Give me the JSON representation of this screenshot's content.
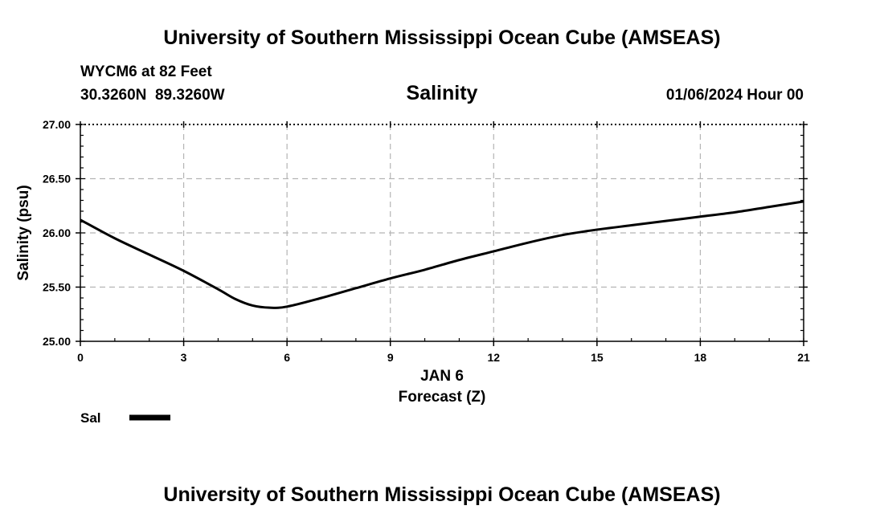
{
  "header": {
    "title": "University of Southern Mississippi Ocean Cube (AMSEAS)",
    "station": "WYCM6 at 82 Feet",
    "coordinates": "30.3260N  89.3260W",
    "datetime": "01/06/2024 Hour 00"
  },
  "footer": {
    "title": "University of Southern Mississippi Ocean Cube (AMSEAS)"
  },
  "chart_data": {
    "type": "line",
    "title": "Salinity",
    "xlabel": "Forecast (Z)",
    "xlabel_date": "JAN 6",
    "ylabel": "Salinity (psu)",
    "xlim": [
      0,
      21
    ],
    "ylim": [
      25.0,
      27.0
    ],
    "xticks": [
      0,
      3,
      6,
      9,
      12,
      15,
      18,
      21
    ],
    "xtick_labels": [
      "0",
      "3",
      "6",
      "9",
      "12",
      "15",
      "18",
      "21"
    ],
    "yticks": [
      25.0,
      25.5,
      26.0,
      26.5,
      27.0
    ],
    "ytick_labels": [
      "25.00",
      "25.50",
      "26.00",
      "26.50",
      "27.00"
    ],
    "grid": true,
    "legend_position": "bottom-left",
    "series": [
      {
        "name": "Sal",
        "color": "#000000",
        "x": [
          0,
          1,
          2,
          3,
          4,
          4.5,
          5,
          5.5,
          6,
          7,
          8,
          9,
          10,
          11,
          12,
          13,
          14,
          15,
          16,
          17,
          18,
          19,
          20,
          21
        ],
        "values": [
          26.12,
          25.95,
          25.8,
          25.65,
          25.48,
          25.39,
          25.33,
          25.31,
          25.32,
          25.4,
          25.49,
          25.58,
          25.66,
          25.75,
          25.83,
          25.91,
          25.98,
          26.03,
          26.07,
          26.11,
          26.15,
          26.19,
          26.24,
          26.29
        ]
      }
    ]
  }
}
